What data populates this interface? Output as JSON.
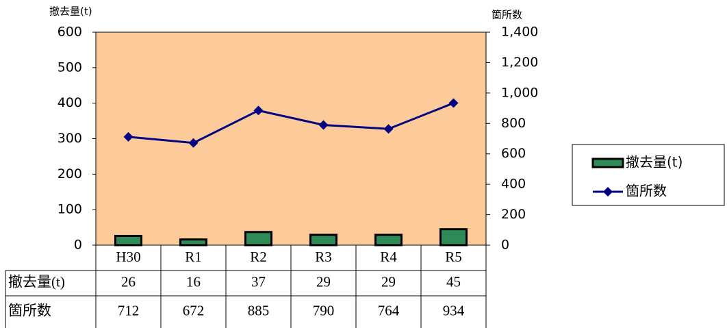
{
  "chart_data": {
    "type": "bar",
    "ylabel": "撤去量(t)",
    "y2label": "箇所数",
    "categories": [
      "H30",
      "R1",
      "R2",
      "R3",
      "R4",
      "R5"
    ],
    "series": [
      {
        "name": "撤去量(t)",
        "type": "bar",
        "color": "#2e8b57",
        "values": [
          26,
          16,
          37,
          29,
          29,
          45
        ]
      },
      {
        "name": "箇所数",
        "type": "line",
        "axis": "y2",
        "color": "#000080",
        "values": [
          712,
          672,
          885,
          790,
          764,
          934
        ]
      }
    ],
    "ylim": [
      0,
      600
    ],
    "yticks": [
      0,
      100,
      200,
      300,
      400,
      500,
      600
    ],
    "y2lim": [
      0,
      1400
    ],
    "y2ticks": [
      0,
      200,
      400,
      600,
      800,
      {
        "value": 1000,
        "label": "1,000"
      },
      {
        "value": 1200,
        "label": "1,200"
      },
      {
        "value": 1400,
        "label": "1,400"
      }
    ],
    "plot_background": "#fdca9a",
    "legend": "right",
    "data_table": true
  }
}
